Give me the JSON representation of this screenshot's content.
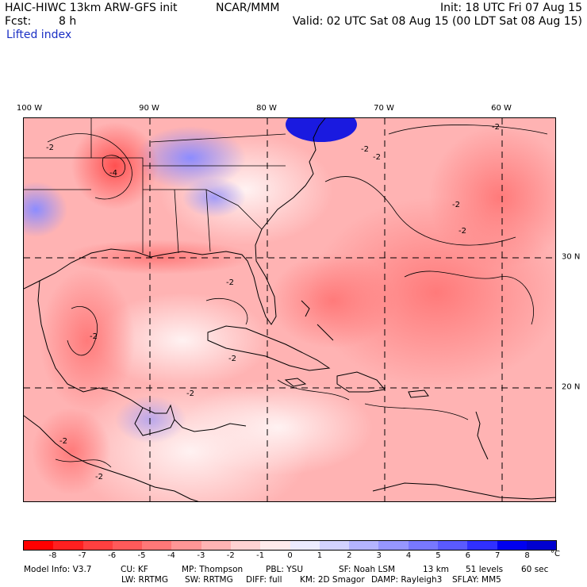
{
  "header": {
    "model": "HAIC-HIWC 13km ARW-GFS init",
    "org": "NCAR/MMM",
    "init": "Init: 18 UTC Fri 07 Aug 15",
    "fcst_label": "Fcst:",
    "fcst_value": "8 h",
    "valid": "Valid: 02 UTC Sat 08 Aug 15 (00 LDT Sat 08 Aug 15)",
    "field": "Lifted index"
  },
  "map": {
    "lon_labels": [
      "100 W",
      "90 W",
      "80 W",
      "70 W",
      "60 W"
    ],
    "lat_labels": [
      "30 N",
      "20 N"
    ],
    "contour_labels": [
      "-2",
      "-4",
      "-2",
      "-2",
      "-2",
      "-2",
      "-2",
      "-2",
      "-2",
      "-2",
      "-2",
      "-2",
      "-2"
    ],
    "colors": {
      "positive_high": "#0000e0",
      "positive_mid": "#8080ff",
      "positive_low": "#d9d9ff",
      "near_zero": "#ffe4e4",
      "neg_low": "#ffb0b0",
      "neg_mid": "#ff7070",
      "neg_high": "#ff3030"
    }
  },
  "colorbar": {
    "ticks": [
      "-8",
      "-7",
      "-6",
      "-5",
      "-4",
      "-3",
      "-2",
      "-1",
      "0",
      "1",
      "2",
      "3",
      "4",
      "5",
      "6",
      "7",
      "8"
    ],
    "unit": "°C",
    "colors": [
      "#ff0000",
      "#ff2020",
      "#ff4040",
      "#ff5a5a",
      "#ff7878",
      "#ff9696",
      "#ffb4b4",
      "#ffd2d2",
      "#ffecec",
      "#ececff",
      "#d2d2ff",
      "#b4b4ff",
      "#9696ff",
      "#7878ff",
      "#5a5aff",
      "#3030ff",
      "#0000f0",
      "#0000d0"
    ]
  },
  "footer": {
    "line1": [
      "Model Info: V3.7",
      "CU: KF",
      "MP: Thompson",
      "PBL: YSU",
      "SF: Noah LSM",
      "13 km",
      "51 levels",
      "60 sec"
    ],
    "line2": [
      "LW: RRTMG",
      "SW: RRTMG",
      "DIFF: full",
      "KM: 2D Smagor",
      "DAMP: Rayleigh3",
      "SFLAY: MM5"
    ]
  }
}
